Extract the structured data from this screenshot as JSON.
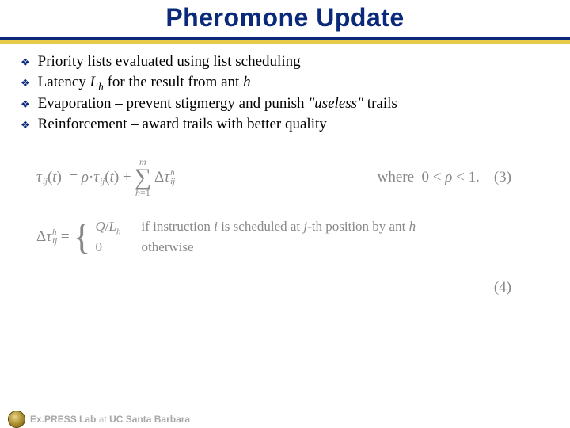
{
  "title": "Pheromone Update",
  "colors": {
    "title": "#0a297a",
    "divider_top": "#0a297a",
    "divider_bottom": "#e8c94a",
    "bullet": "#0a297a",
    "formula_text": "#888888",
    "background": "#ffffff"
  },
  "bullets": [
    {
      "text": "Priority lists evaluated using list scheduling"
    },
    {
      "html": "Latency <span class=\"ital\">L<span class=\"sub\">h</span></span> for the result from ant <span class=\"ital\">h</span>"
    },
    {
      "html": "Evaporation – prevent stigmergy and punish <span class=\"ital\">\"useless\"</span> trails"
    },
    {
      "text": "Reinforcement – award trails with better quality"
    }
  ],
  "formulas": {
    "eq3": {
      "lhs": "τ_{ij}(t) = ρ · τ_{ij}(t) + Σ_{h=1}^{m} Δτ_{ij}^{h}",
      "where": "where 0 < ρ < 1.",
      "number": "(3)"
    },
    "eq4": {
      "lhs": "Δτ_{ij}^{h} =",
      "cases": [
        {
          "value": "Q/L_h",
          "cond": "if instruction i is scheduled at j-th position by ant h"
        },
        {
          "value": "0",
          "cond": "otherwise"
        }
      ],
      "number": "(4)"
    }
  },
  "footer": {
    "lab": "Ex.PRESS Lab",
    "at": " at ",
    "uni": "UC Santa Barbara"
  }
}
